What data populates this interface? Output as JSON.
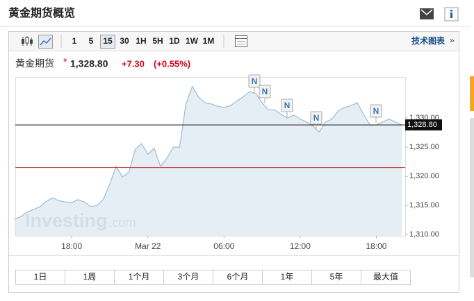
{
  "header": {
    "title": "黄金期货概览"
  },
  "toolbar": {
    "intervals": [
      "1",
      "5",
      "15",
      "30",
      "1H",
      "5H",
      "1D",
      "1W",
      "1M"
    ],
    "selected": "15",
    "link": "技术图表",
    "link_arrow": "»"
  },
  "quote": {
    "name": "黄金期货",
    "marker": "*",
    "change": "+7.30",
    "change_pct": "(+0.55%)"
  },
  "chart_data": {
    "type": "area",
    "color": "#9dbcd6",
    "fill": "#dfe9f3",
    "categories": [
      null,
      null,
      null,
      null,
      null,
      null,
      null,
      null,
      null,
      "18:00",
      null,
      null,
      null,
      null,
      null,
      null,
      null,
      null,
      null,
      null,
      null,
      "Mar 22",
      null,
      null,
      null,
      null,
      null,
      null,
      null,
      null,
      null,
      null,
      null,
      "06:00",
      null,
      null,
      null,
      null,
      null,
      null,
      null,
      null,
      null,
      null,
      null,
      "12:00",
      null,
      null,
      null,
      null,
      null,
      null,
      null,
      null,
      null,
      null,
      null,
      "18:00",
      null,
      null,
      null,
      null
    ],
    "values": [
      1312.6,
      1313.1,
      1313.9,
      1314.3,
      1314.8,
      1315.7,
      1316.3,
      1315.8,
      1315.6,
      1315.5,
      1316.0,
      1315.6,
      1314.8,
      1315.0,
      1316.1,
      1318.7,
      1321.7,
      1319.9,
      1320.7,
      1324.6,
      1325.6,
      1323.8,
      1324.8,
      1321.7,
      1323.1,
      1325.0,
      1325.0,
      1332.4,
      1335.4,
      1333.6,
      1332.6,
      1332.4,
      1332.0,
      1331.8,
      1332.1,
      1332.9,
      1333.6,
      1334.5,
      1334.2,
      1332.6,
      1331.4,
      1331.4,
      1330.6,
      1330.0,
      1330.5,
      1329.8,
      1329.3,
      1328.6,
      1327.6,
      1329.3,
      1329.8,
      1331.2,
      1331.8,
      1332.1,
      1332.6,
      1330.6,
      1328.8,
      1328.8,
      1329.3,
      1329.8,
      1329.3,
      1328.8
    ],
    "ylim": [
      1309.8,
      1336.9
    ],
    "yticks": [
      {
        "value": 1310,
        "label": "1,310.00"
      },
      {
        "value": 1315,
        "label": "1,315.00"
      },
      {
        "value": 1320,
        "label": "1,320.00"
      },
      {
        "value": 1325,
        "label": "1,325.00"
      },
      {
        "value": 1330,
        "label": "1,330.00"
      }
    ],
    "last_value": {
      "value": 1328.8,
      "label": "1,328.80"
    },
    "prev_close": 1321.5,
    "news": [
      "N",
      "N",
      "N",
      "N",
      "N"
    ],
    "watermark": "Investing",
    "watermark_suffix": ".com"
  },
  "periods": [
    "1日",
    "1周",
    "1个月",
    "3个月",
    "6个月",
    "1年",
    "5年",
    "最大值"
  ]
}
